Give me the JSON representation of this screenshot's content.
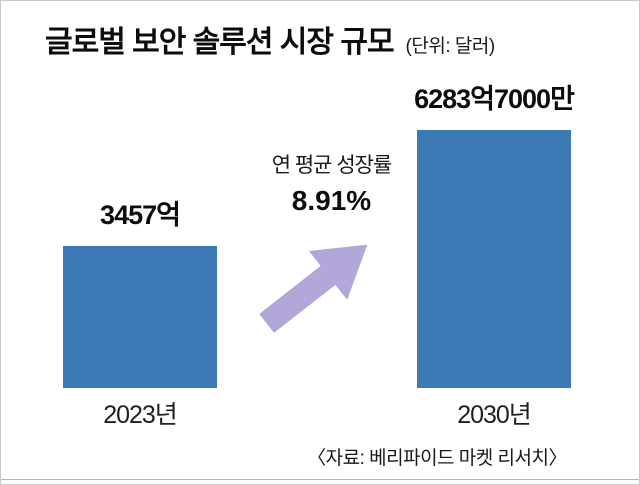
{
  "title": "글로벌 보안 솔루션 시장 규모",
  "unit_label": "(단위: 달러)",
  "growth": {
    "label": "연 평균 성장률",
    "value": "8.91%"
  },
  "source": "〈자료: 베리파이드 마켓 리서치〉",
  "colors": {
    "bar": "#3c7ab6",
    "arrow": "#b3a6d8"
  },
  "chart_data": {
    "type": "bar",
    "title": "글로벌 보안 솔루션 시장 규모",
    "unit": "억 달러",
    "categories": [
      "2023년",
      "2030년"
    ],
    "values": [
      3457,
      6283.7
    ],
    "value_labels": [
      "3457억",
      "6283억7000만"
    ],
    "annotation": "연 평균 성장률 8.91%",
    "ylim": [
      0,
      6600
    ],
    "grid": false,
    "legend": false,
    "xlabel": "",
    "ylabel": ""
  }
}
